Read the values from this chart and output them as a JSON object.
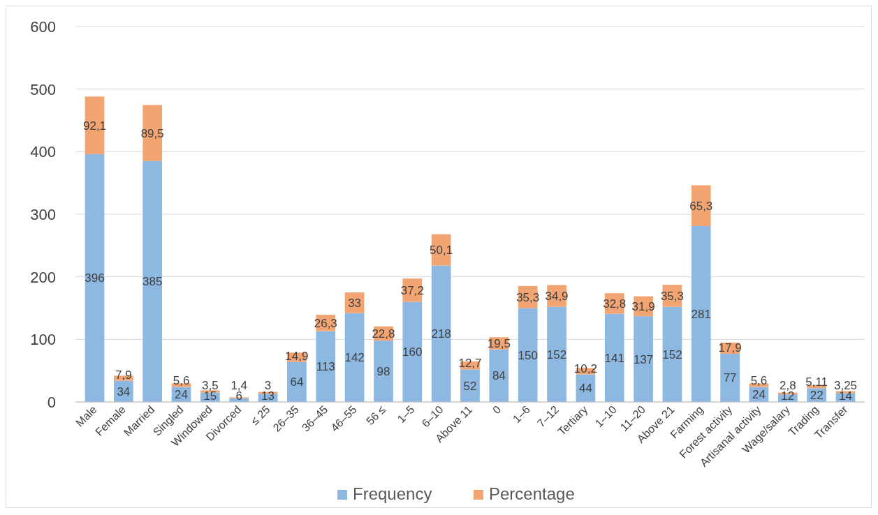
{
  "chart_data": {
    "type": "bar",
    "stacked": true,
    "categories": [
      "Male",
      "Female",
      "Married",
      "Singled",
      "Windowed",
      "Divorced",
      "≤ 25",
      "26–35",
      "36–45",
      "46–55",
      "56 ≤",
      "1–5",
      "6–10",
      "Above 11",
      "0",
      "1–6",
      "7–12",
      "Tertiary",
      "1–10",
      "11–20",
      "Above 21",
      "Farming",
      "Forest activity",
      "Artisanal activity",
      "Wage/salary",
      "Trading",
      "Transfer"
    ],
    "series": [
      {
        "name": "Frequency",
        "color": "#8db8e2",
        "values": [
          396,
          34,
          385,
          24,
          15,
          6,
          13,
          64,
          113,
          142,
          98,
          160,
          218,
          52,
          84,
          150,
          152,
          44,
          141,
          137,
          152,
          281,
          77,
          24,
          12,
          22,
          14
        ],
        "value_labels": [
          "396",
          "34",
          "385",
          "24",
          "15",
          "6",
          "13",
          "64",
          "113",
          "142",
          "98",
          "160",
          "218",
          "52",
          "84",
          "150",
          "152",
          "44",
          "141",
          "137",
          "152",
          "281",
          "77",
          "24",
          "12",
          "22",
          "14"
        ]
      },
      {
        "name": "Percentage",
        "color": "#f2a572",
        "values": [
          92.1,
          7.9,
          89.5,
          5.6,
          3.5,
          1.4,
          3,
          14.9,
          26.3,
          33,
          22.8,
          37.2,
          50.1,
          12.7,
          19.5,
          35.3,
          34.9,
          10.2,
          32.8,
          31.9,
          35.3,
          65.3,
          17.9,
          5.6,
          2.8,
          5.11,
          3.25
        ],
        "value_labels": [
          "92,1",
          "7,9",
          "89,5",
          "5,6",
          "3,5",
          "1,4",
          "3",
          "14,9",
          "26,3",
          "33",
          "22,8",
          "37,2",
          "50,1",
          "12,7",
          "19,5",
          "35,3",
          "34,9",
          "10,2",
          "32,8",
          "31,9",
          "35,3",
          "65,3",
          "17,9",
          "5,6",
          "2,8",
          "5,11",
          "3,25"
        ]
      }
    ],
    "ylim": [
      0,
      600
    ],
    "yticks": [
      0,
      100,
      200,
      300,
      400,
      500,
      600
    ],
    "grid": "y",
    "legend": "bottom"
  }
}
